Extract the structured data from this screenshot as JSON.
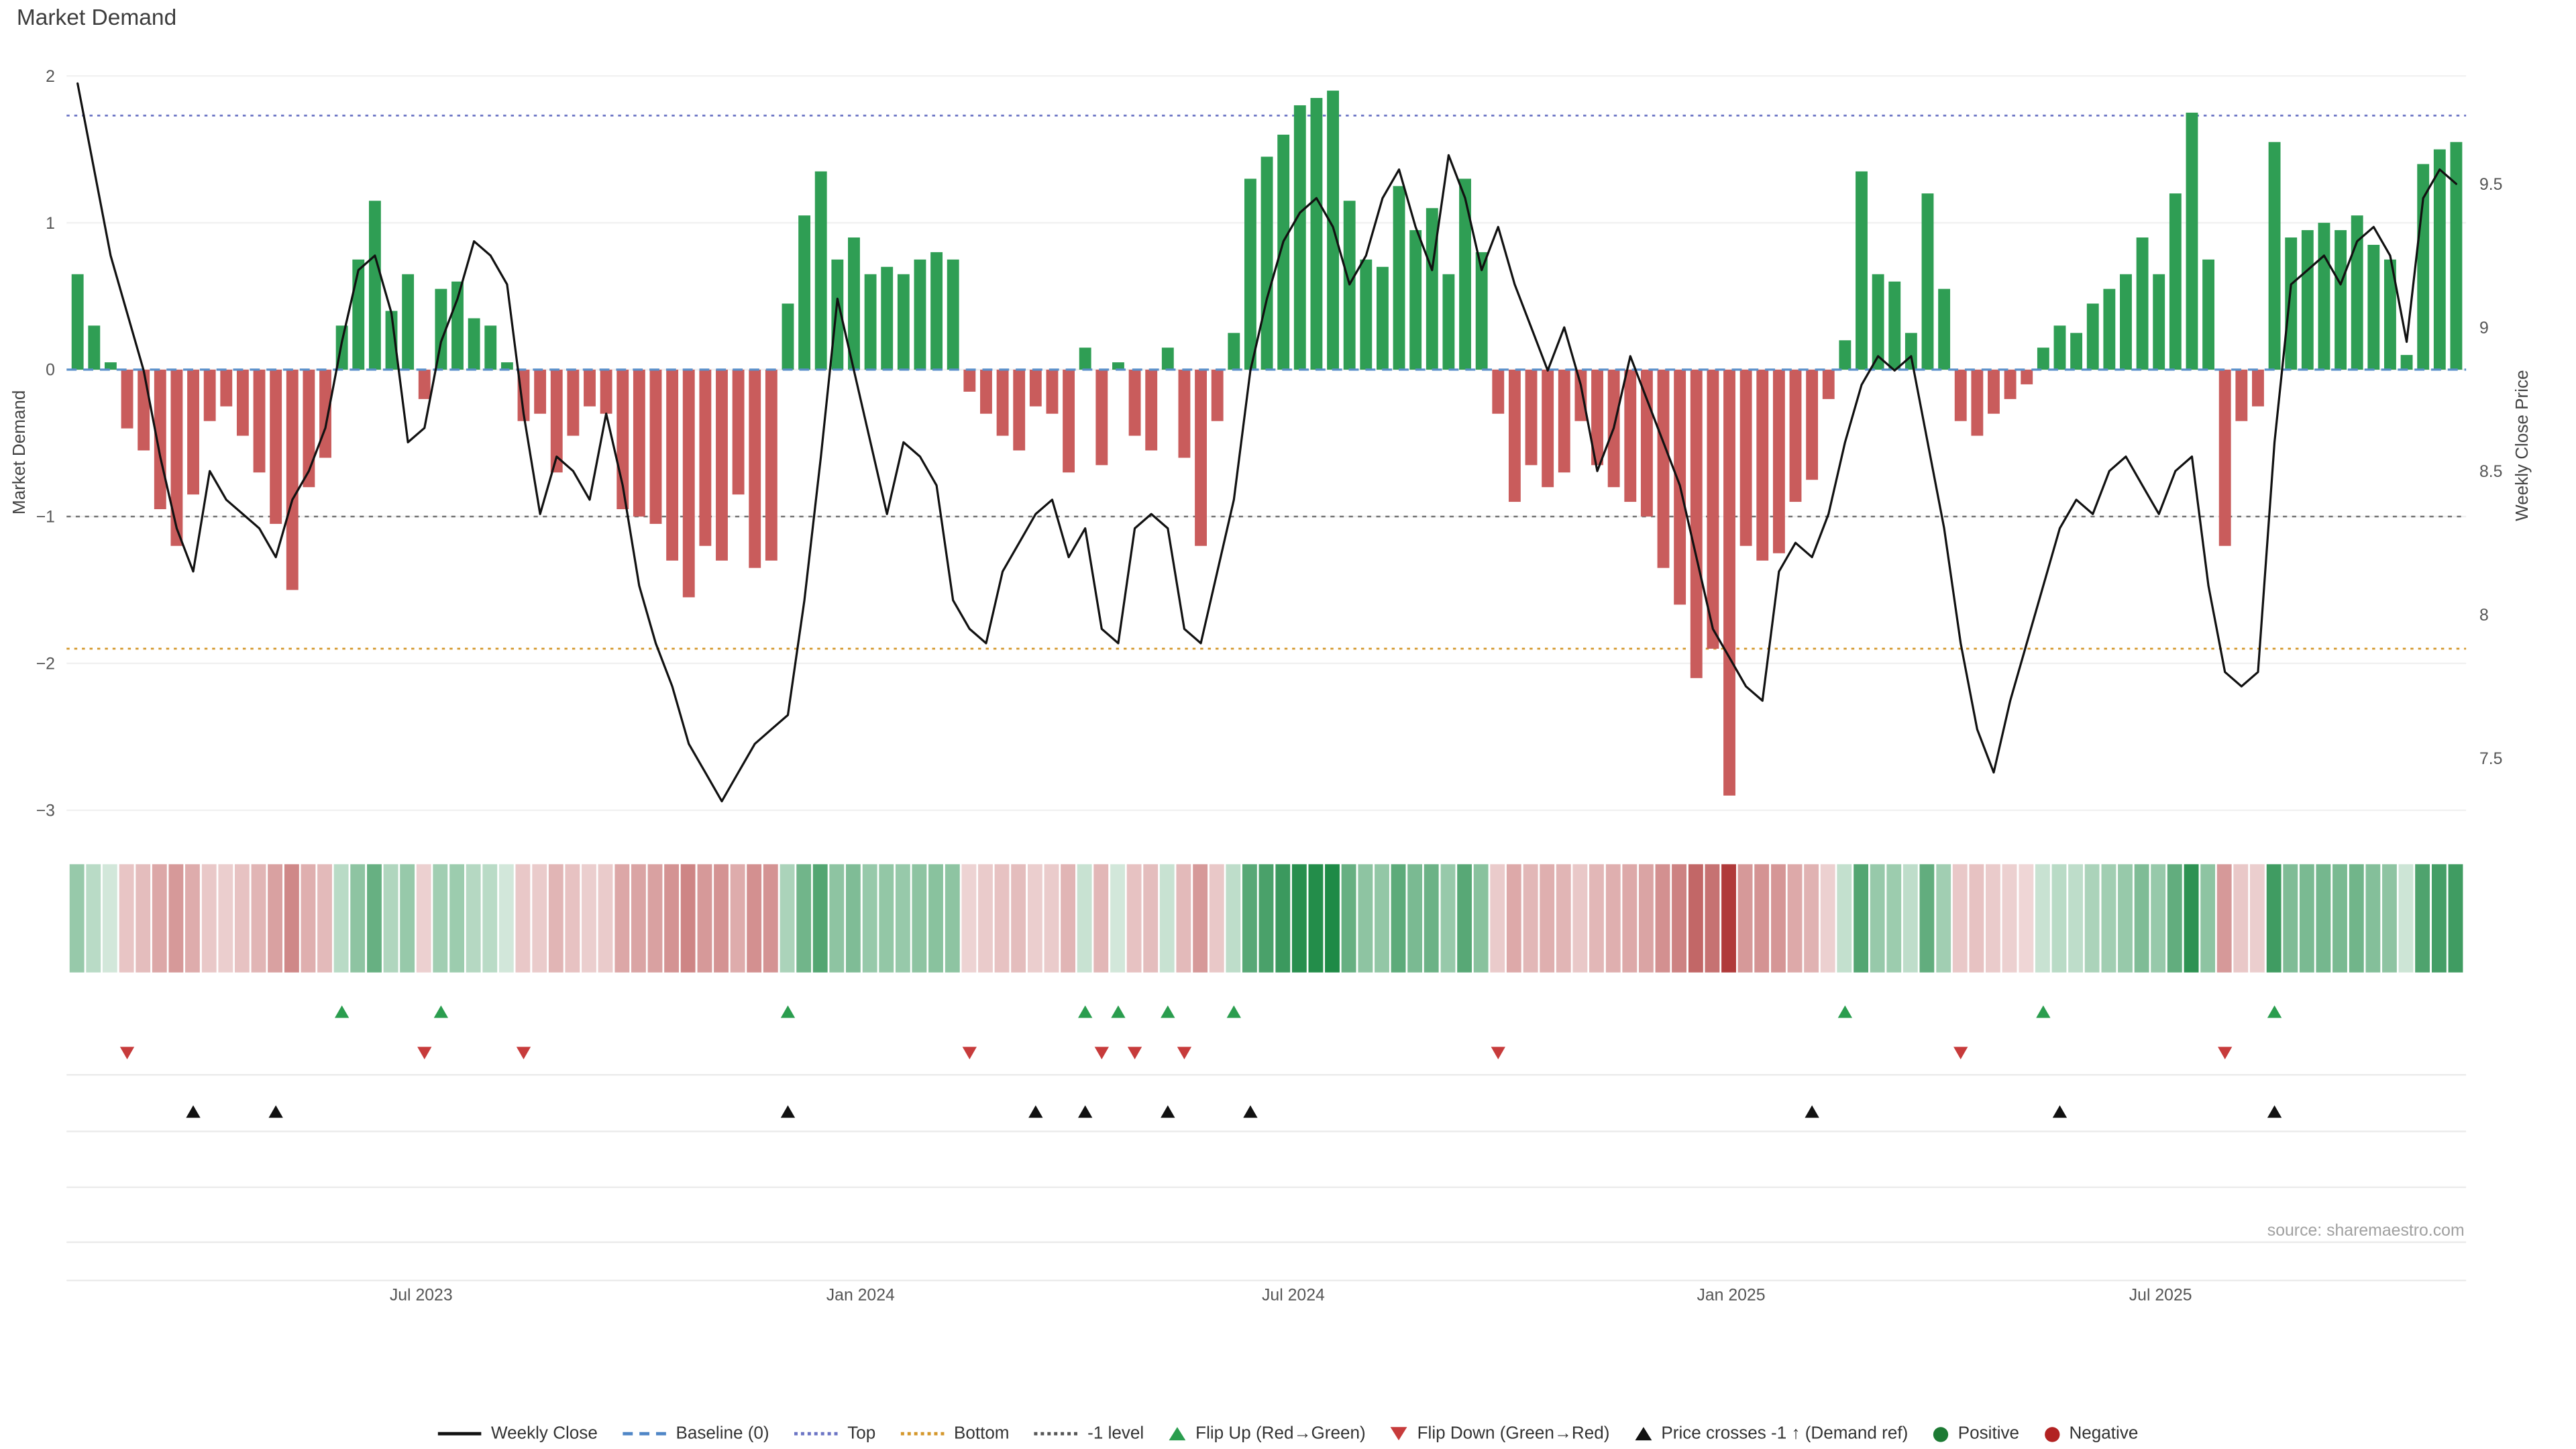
{
  "title": "Market Demand",
  "source": "source: sharemaestro.com",
  "left_axis": {
    "title": "Market Demand",
    "ticks": [
      "2",
      "1",
      "0",
      "−1",
      "−2",
      "−3"
    ],
    "tick_values": [
      2,
      1,
      0,
      -1,
      -2,
      -3
    ]
  },
  "right_axis": {
    "title": "Weekly Close Price",
    "ticks": [
      "9.5",
      "9",
      "8.5",
      "8",
      "7.5"
    ],
    "tick_values": [
      9.5,
      9,
      8.5,
      8,
      7.5
    ]
  },
  "x_axis": {
    "ticks": [
      {
        "label": "Jul 2023",
        "week": 20.8
      },
      {
        "label": "Jan 2024",
        "week": 47.4
      },
      {
        "label": "Jul 2024",
        "week": 73.6
      },
      {
        "label": "Jan 2025",
        "week": 100.1
      },
      {
        "label": "Jul 2025",
        "week": 126.1
      }
    ]
  },
  "colors": {
    "bar_positive": "#2f9e54",
    "bar_negative": "#c95c5c",
    "price_line": "#111111",
    "baseline": "#5a8fc9",
    "top_line": "#6b74c4",
    "bottom_line": "#d4972b",
    "minus1_line": "#555555",
    "flip_up": "#2a9d4e",
    "flip_down": "#c73b3b",
    "price_cross": "#111111",
    "positive_dot": "#1d7a34",
    "negative_dot": "#b22222",
    "heat_green": "#1e8a46",
    "heat_red": "#b03a3a",
    "grid": "#f1f1f1",
    "row_line": "#ebebeb",
    "tick_text": "#555555"
  },
  "chart_data": {
    "type": "bar+line",
    "title": "Market Demand",
    "frequency": "weekly",
    "ylabel_left": "Market Demand",
    "ylabel_right": "Weekly Close Price",
    "ylim_left": [
      -3.15,
      2.1
    ],
    "ylim_right": [
      7.3,
      9.9
    ],
    "grid": true,
    "legend_position": "bottom",
    "series": [
      {
        "name": "Market Demand",
        "type": "bar",
        "axis": "left",
        "values": [
          0.65,
          0.3,
          0.05,
          -0.4,
          -0.55,
          -0.95,
          -1.2,
          -0.85,
          -0.35,
          -0.25,
          -0.45,
          -0.7,
          -1.05,
          -1.5,
          -0.8,
          -0.6,
          0.3,
          0.75,
          1.15,
          0.4,
          0.65,
          -0.2,
          0.55,
          0.6,
          0.35,
          0.3,
          0.05,
          -0.35,
          -0.3,
          -0.7,
          -0.45,
          -0.25,
          -0.3,
          -0.95,
          -1.0,
          -1.05,
          -1.3,
          -1.55,
          -1.2,
          -1.3,
          -0.85,
          -1.35,
          -1.3,
          0.45,
          1.05,
          1.35,
          0.75,
          0.9,
          0.65,
          0.7,
          0.65,
          0.75,
          0.8,
          0.75,
          -0.15,
          -0.3,
          -0.45,
          -0.55,
          -0.25,
          -0.3,
          -0.7,
          0.15,
          -0.65,
          0.05,
          -0.45,
          -0.55,
          0.15,
          -0.6,
          -1.2,
          -0.35,
          0.25,
          1.3,
          1.45,
          1.6,
          1.8,
          1.85,
          1.9,
          1.15,
          0.75,
          0.7,
          1.25,
          0.95,
          1.1,
          0.65,
          1.3,
          0.8,
          -0.3,
          -0.9,
          -0.65,
          -0.8,
          -0.7,
          -0.35,
          -0.65,
          -0.8,
          -0.9,
          -1.0,
          -1.35,
          -1.6,
          -2.1,
          -1.9,
          -2.9,
          -1.2,
          -1.3,
          -1.25,
          -0.9,
          -0.75,
          -0.2,
          0.2,
          1.35,
          0.65,
          0.6,
          0.25,
          1.2,
          0.55,
          -0.35,
          -0.45,
          -0.3,
          -0.2,
          -0.1,
          0.15,
          0.3,
          0.25,
          0.45,
          0.55,
          0.65,
          0.9,
          0.65,
          1.2,
          1.75,
          0.75,
          -1.2,
          -0.35,
          -0.25,
          1.55,
          0.9,
          0.95,
          1.0,
          0.95,
          1.05,
          0.85,
          0.75,
          0.1,
          1.4,
          1.5,
          1.55
        ]
      },
      {
        "name": "Weekly Close",
        "type": "line",
        "axis": "right",
        "values": [
          9.85,
          9.55,
          9.25,
          9.05,
          8.85,
          8.55,
          8.3,
          8.15,
          8.5,
          8.4,
          8.35,
          8.3,
          8.2,
          8.4,
          8.5,
          8.65,
          8.95,
          9.2,
          9.25,
          9.05,
          8.6,
          8.65,
          8.95,
          9.1,
          9.3,
          9.25,
          9.15,
          8.7,
          8.35,
          8.55,
          8.5,
          8.4,
          8.7,
          8.45,
          8.1,
          7.9,
          7.75,
          7.55,
          7.45,
          7.35,
          7.45,
          7.55,
          7.6,
          7.65,
          8.05,
          8.55,
          9.1,
          8.85,
          8.6,
          8.35,
          8.6,
          8.55,
          8.45,
          8.05,
          7.95,
          7.9,
          8.15,
          8.25,
          8.35,
          8.4,
          8.2,
          8.3,
          7.95,
          7.9,
          8.3,
          8.35,
          8.3,
          7.95,
          7.9,
          8.15,
          8.4,
          8.85,
          9.1,
          9.3,
          9.4,
          9.45,
          9.35,
          9.15,
          9.25,
          9.45,
          9.55,
          9.35,
          9.2,
          9.6,
          9.45,
          9.2,
          9.35,
          9.15,
          9.0,
          8.85,
          9.0,
          8.8,
          8.5,
          8.65,
          8.9,
          8.75,
          8.6,
          8.45,
          8.2,
          7.95,
          7.85,
          7.75,
          7.7,
          8.15,
          8.25,
          8.2,
          8.35,
          8.6,
          8.8,
          8.9,
          8.85,
          8.9,
          8.6,
          8.3,
          7.9,
          7.6,
          7.45,
          7.7,
          7.9,
          8.1,
          8.3,
          8.4,
          8.35,
          8.5,
          8.55,
          8.45,
          8.35,
          8.5,
          8.55,
          8.1,
          7.8,
          7.75,
          7.8,
          8.6,
          9.15,
          9.2,
          9.25,
          9.15,
          9.3,
          9.35,
          9.25,
          8.95,
          9.45,
          9.55,
          9.5
        ]
      }
    ],
    "reference_lines": {
      "baseline": 0,
      "top": 1.73,
      "bottom": -1.9,
      "minus1": -1
    },
    "markers": {
      "flip_up_weeks": [
        16,
        22,
        43,
        61,
        63,
        66,
        70,
        107,
        119,
        133
      ],
      "flip_down_weeks": [
        3,
        21,
        27,
        54,
        62,
        64,
        67,
        86,
        114,
        130
      ],
      "price_cross_weeks": [
        7,
        12,
        43,
        58,
        61,
        66,
        71,
        105,
        120,
        133
      ]
    },
    "heatmap": {
      "description": "weekly demand intensity strip, red-negative green-positive",
      "values_from": "series.0"
    },
    "price_map": {
      "p": 9.5,
      "d": 1.265,
      "slope": 1.955
    }
  },
  "legend": {
    "items": [
      {
        "label": "Weekly Close",
        "icon": "line",
        "color": "#111111",
        "name": "legend-item-weekly-close"
      },
      {
        "label": "Baseline (0)",
        "icon": "dash",
        "color": "#4f86c6",
        "name": "legend-item-baseline"
      },
      {
        "label": "Top",
        "icon": "dots",
        "color": "#6b74c4",
        "name": "legend-item-top"
      },
      {
        "label": "Bottom",
        "icon": "dots",
        "color": "#d4972b",
        "name": "legend-item-bottom"
      },
      {
        "label": "-1 level",
        "icon": "dots",
        "color": "#555555",
        "name": "legend-item-minus1-level"
      },
      {
        "label": "Flip Up (Red→Green)",
        "icon": "tri-up",
        "color": "#2a9d4e",
        "name": "legend-item-flip-up"
      },
      {
        "label": "Flip Down (Green→Red)",
        "icon": "tri-down",
        "color": "#c73b3b",
        "name": "legend-item-flip-down"
      },
      {
        "label": "Price crosses -1 ↑ (Demand ref)",
        "icon": "tri-up",
        "color": "#111111",
        "name": "legend-item-price-crosses"
      },
      {
        "label": "Positive",
        "icon": "dot",
        "color": "#1d7a34",
        "name": "legend-item-positive"
      },
      {
        "label": "Negative",
        "icon": "dot",
        "color": "#b22222",
        "name": "legend-item-negative"
      }
    ]
  }
}
